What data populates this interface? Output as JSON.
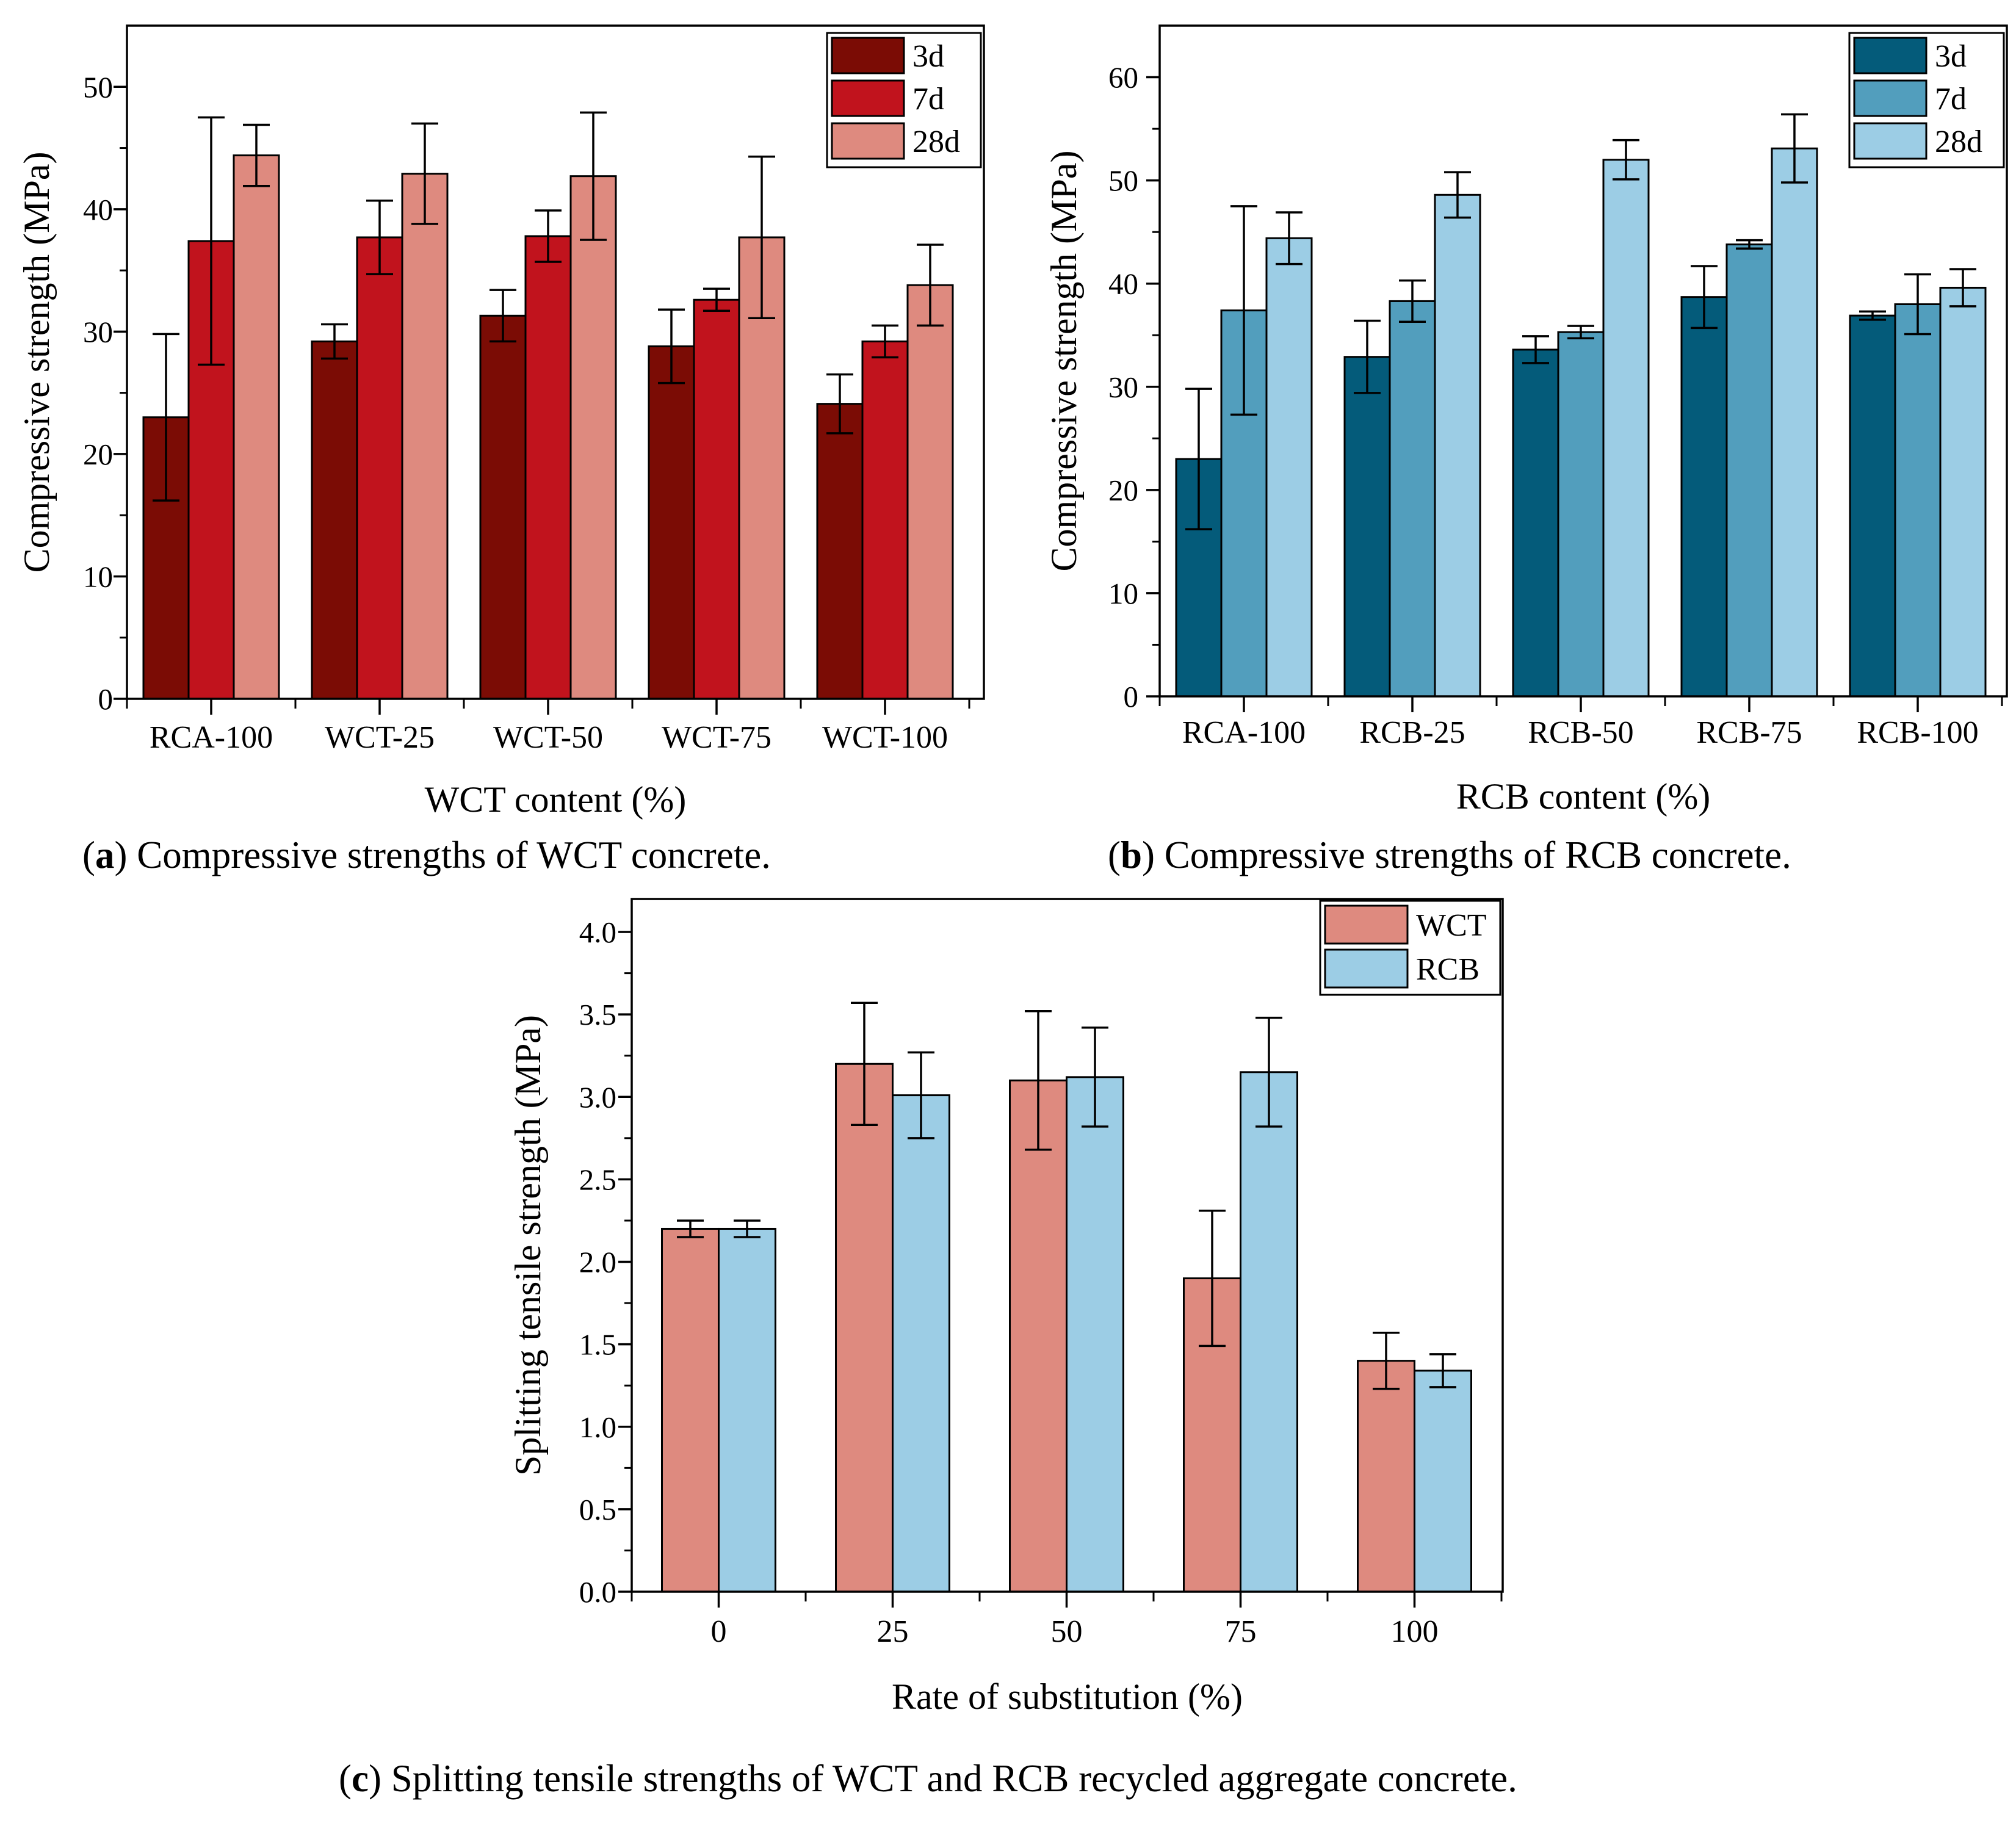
{
  "colors": {
    "wct_3d": "#7b0c05",
    "wct_7d": "#c1131d",
    "wct_28d": "#de8a7f",
    "rcb_3d": "#045b7a",
    "rcb_7d": "#529ebd",
    "rcb_28d": "#9ccde5",
    "split_wct": "#de8a7f",
    "split_rcb": "#9ccde5"
  },
  "captions": {
    "a_label": "a",
    "a_text": " Compressive strengths of WCT concrete.",
    "b_label": "b",
    "b_text": " Compressive strengths of RCB concrete.",
    "c_label": "c",
    "c_text": " Splitting tensile strengths of WCT and RCB recycled aggregate concrete."
  },
  "chart_data": [
    {
      "id": "a",
      "type": "bar",
      "xlabel": "WCT content (%)",
      "ylabel": "Compressive strength (MPa)",
      "ylim": [
        0,
        55
      ],
      "yticks": [
        0,
        10,
        20,
        30,
        40,
        50
      ],
      "ytick_labels": [
        "0",
        "10",
        "20",
        "30",
        "40",
        "50"
      ],
      "categories": [
        "RCA-100",
        "WCT-25",
        "WCT-50",
        "WCT-75",
        "WCT-100"
      ],
      "legend_position": "top-right",
      "series": [
        {
          "name": "3d",
          "color_key": "wct_3d",
          "values": [
            23.0,
            29.2,
            31.3,
            28.8,
            24.1
          ],
          "errors": [
            6.8,
            1.4,
            2.1,
            3.0,
            2.4
          ]
        },
        {
          "name": "7d",
          "color_key": "wct_7d",
          "values": [
            37.4,
            37.7,
            37.8,
            32.6,
            29.2
          ],
          "errors": [
            10.1,
            3.0,
            2.1,
            0.9,
            1.3
          ]
        },
        {
          "name": "28d",
          "color_key": "wct_28d",
          "values": [
            44.4,
            42.9,
            42.7,
            37.7,
            33.8
          ],
          "errors": [
            2.5,
            4.1,
            5.2,
            6.6,
            3.3
          ]
        }
      ]
    },
    {
      "id": "b",
      "type": "bar",
      "xlabel": "RCB content (%)",
      "ylabel": "Compressive strength (MPa)",
      "ylim": [
        0,
        65
      ],
      "yticks": [
        0,
        10,
        20,
        30,
        40,
        50,
        60
      ],
      "ytick_labels": [
        "0",
        "10",
        "20",
        "30",
        "40",
        "50",
        "60"
      ],
      "categories": [
        "RCA-100",
        "RCB-25",
        "RCB-50",
        "RCB-75",
        "RCB-100"
      ],
      "legend_position": "top-right",
      "series": [
        {
          "name": "3d",
          "color_key": "rcb_3d",
          "values": [
            23.0,
            32.9,
            33.6,
            38.7,
            36.9
          ],
          "errors": [
            6.8,
            3.5,
            1.3,
            3.0,
            0.4
          ]
        },
        {
          "name": "7d",
          "color_key": "rcb_7d",
          "values": [
            37.4,
            38.3,
            35.3,
            43.8,
            38.0
          ],
          "errors": [
            10.1,
            2.0,
            0.6,
            0.4,
            2.9
          ]
        },
        {
          "name": "28d",
          "color_key": "rcb_28d",
          "values": [
            44.4,
            48.6,
            52.0,
            53.1,
            39.6
          ],
          "errors": [
            2.5,
            2.2,
            1.9,
            3.3,
            1.8
          ]
        }
      ]
    },
    {
      "id": "c",
      "type": "bar",
      "xlabel": "Rate of substitution (%)",
      "ylabel": "Splitting tensile strength (MPa)",
      "ylim": [
        0,
        4.2
      ],
      "yticks": [
        0,
        0.5,
        1,
        1.5,
        2,
        2.5,
        3,
        3.5,
        4
      ],
      "ytick_labels": [
        "0.0",
        "0.5",
        "1.0",
        "1.5",
        "2.0",
        "2.5",
        "3.0",
        "3.5",
        "4.0"
      ],
      "categories": [
        "0",
        "25",
        "50",
        "75",
        "100"
      ],
      "legend_position": "top-right",
      "series": [
        {
          "name": "WCT",
          "color_key": "split_wct",
          "values": [
            2.2,
            3.2,
            3.1,
            1.9,
            1.4
          ],
          "errors": [
            0.05,
            0.37,
            0.42,
            0.41,
            0.17
          ]
        },
        {
          "name": "RCB",
          "color_key": "split_rcb",
          "values": [
            2.2,
            3.01,
            3.12,
            3.15,
            1.34
          ],
          "errors": [
            0.05,
            0.26,
            0.3,
            0.33,
            0.1
          ]
        }
      ]
    }
  ]
}
